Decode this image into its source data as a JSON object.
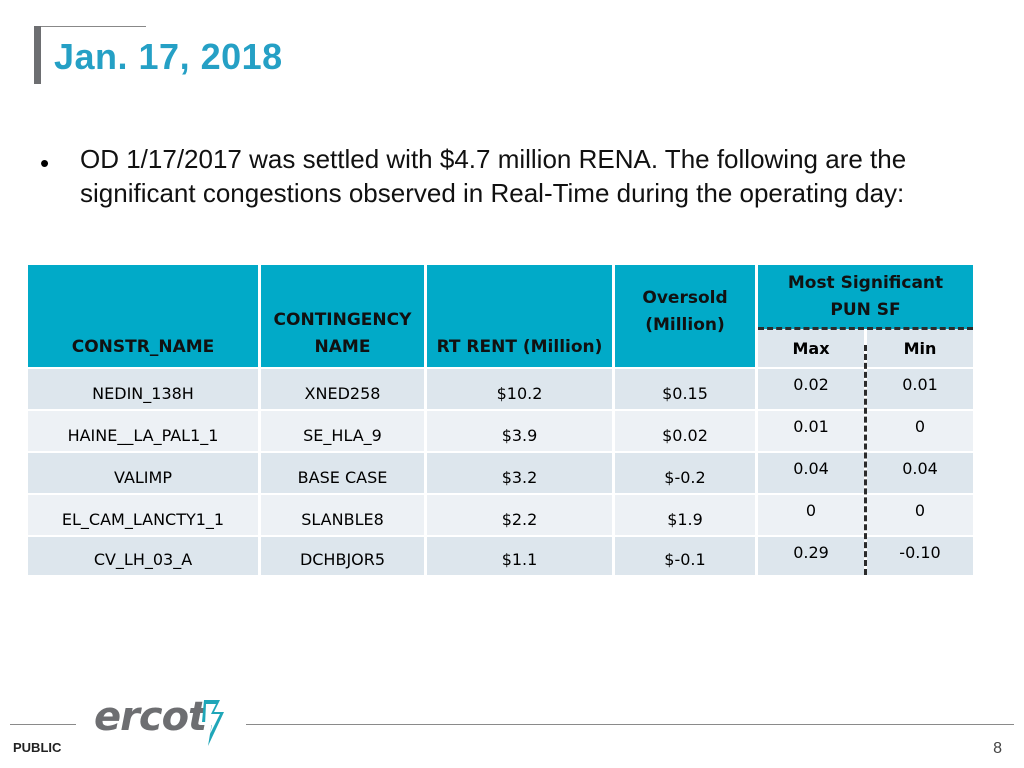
{
  "title": "Jan. 17, 2018",
  "bullet": {
    "symbol": "•",
    "text": "OD 1/17/2017 was settled with $4.7 million RENA. The following are the significant congestions observed in Real-Time during the operating day:"
  },
  "table": {
    "headers": {
      "constr_name": "CONSTR_NAME",
      "contingency_line1": "CONTINGENCY",
      "contingency_line2": "NAME",
      "rt_rent": "RT RENT (Million)",
      "oversold_line1": "Oversold",
      "oversold_line2": "(Million)",
      "pun_line1": "Most Significant",
      "pun_line2": "PUN SF",
      "max": "Max",
      "min": "Min"
    },
    "rows": [
      {
        "constr_name": "NEDIN_138H",
        "contingency": "XNED258",
        "rt_rent": "$10.2",
        "oversold": "$0.15",
        "max": "0.02",
        "min": "0.01"
      },
      {
        "constr_name": "HAINE__LA_PAL1_1",
        "contingency": "SE_HLA_9",
        "rt_rent": "$3.9",
        "oversold": "$0.02",
        "max": "0.01",
        "min": "0"
      },
      {
        "constr_name": "VALIMP",
        "contingency": "BASE CASE",
        "rt_rent": "$3.2",
        "oversold": "$-0.2",
        "max": "0.04",
        "min": "0.04"
      },
      {
        "constr_name": "EL_CAM_LANCTY1_1",
        "contingency": "SLANBLE8",
        "rt_rent": "$2.2",
        "oversold": "$1.9",
        "max": "0",
        "min": "0"
      },
      {
        "constr_name": "CV_LH_03_A",
        "contingency": "DCHBJOR5",
        "rt_rent": "$1.1",
        "oversold": "$-0.1",
        "max": "0.29",
        "min": "-0.10"
      }
    ]
  },
  "footer": {
    "logo": "ercot",
    "label": "PUBLIC",
    "page_number": "8"
  },
  "colors": {
    "title": "#25a0c5",
    "header_bg": "#01aac8",
    "row_a": "#dde6ed",
    "row_b": "#edf1f5",
    "logo_grey": "#6d6e71",
    "logo_teal": "#1fa6b8"
  }
}
